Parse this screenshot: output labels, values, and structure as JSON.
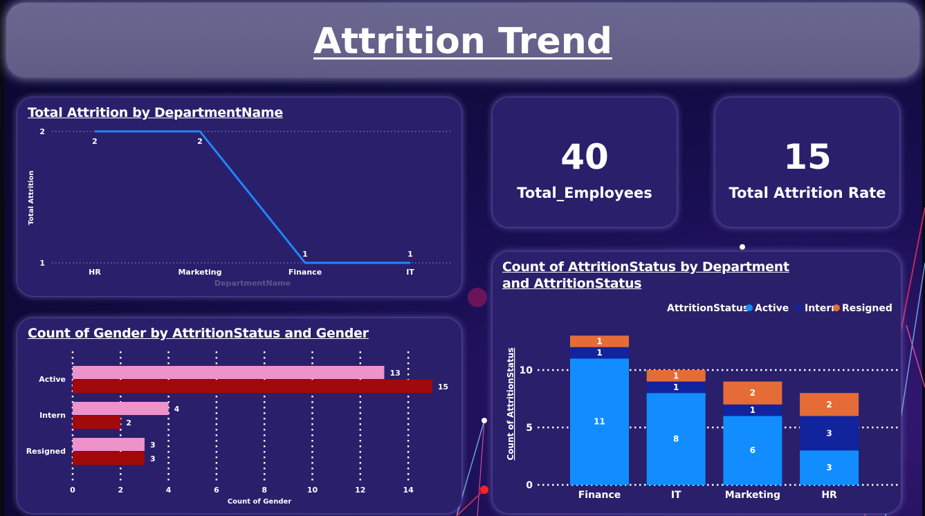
{
  "header": {
    "title": "Attrition Trend "
  },
  "kpis": [
    {
      "value": "40",
      "label": "Total_Employees"
    },
    {
      "value": "15",
      "label": "Total Attrition Rate"
    }
  ],
  "chart_data": [
    {
      "type": "line",
      "title": "Total Attrition by DepartmentName",
      "xlabel": "DepartmentName",
      "ylabel": "Total Attrition",
      "categories": [
        "HR",
        "Marketing",
        "Finance",
        "IT"
      ],
      "values": [
        2,
        2,
        1,
        1
      ],
      "y_ticks": [
        1,
        2
      ],
      "ylim": [
        1,
        2
      ],
      "series_color": "#1e88ff",
      "grid": true
    },
    {
      "type": "bar",
      "orientation": "horizontal",
      "title": "Count of Gender by AttritionStatus and Gender",
      "xlabel": "Count of Gender",
      "categories": [
        "Active",
        "Intern",
        "Resigned"
      ],
      "series": [
        {
          "values": [
            13,
            4,
            3
          ],
          "color": "#ee92ca"
        },
        {
          "values": [
            15,
            2,
            3
          ],
          "color": "#a10a0a"
        }
      ],
      "x_ticks": [
        0,
        2,
        4,
        6,
        8,
        10,
        12,
        14
      ],
      "xlim": [
        0,
        15
      ],
      "grid": true
    },
    {
      "type": "bar",
      "stacked": true,
      "title": "Count of AttritionStatus by Department and AttritionStatus",
      "ylabel": "Count of AttritionStatus",
      "legend_title": "AttritionStatus",
      "legend_position": "top-right",
      "categories": [
        "Finance",
        "IT",
        "Marketing",
        "HR"
      ],
      "series": [
        {
          "name": "Active",
          "values": [
            11,
            8,
            6,
            3
          ],
          "color": "#118dff"
        },
        {
          "name": "Intern",
          "values": [
            1,
            1,
            1,
            3
          ],
          "color": "#12239e"
        },
        {
          "name": "Resigned",
          "values": [
            1,
            1,
            2,
            2
          ],
          "color": "#e66c37"
        }
      ],
      "y_ticks": [
        0,
        5,
        10
      ],
      "ylim": [
        0,
        13
      ],
      "grid": true
    }
  ]
}
